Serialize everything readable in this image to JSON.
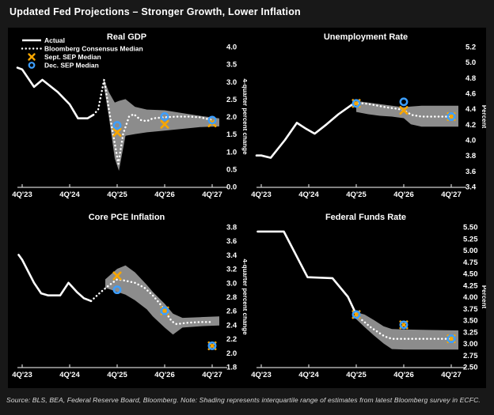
{
  "header": {
    "title": "Updated Fed Projections – Stronger Growth, Lower Inflation"
  },
  "footer": {
    "note": "Source: BLS, BEA, Federal Reserve Board, Bloomberg. Note: Shading represents interquartile range of estimates from latest Bloomberg survey in ECFC."
  },
  "colors": {
    "page_bg": "#181818",
    "panel_bg": "#000000",
    "actual": "#ffffff",
    "consensus": "#ffffff",
    "band": "#8c8c8c",
    "sept_x": "#f7a600",
    "dec_circle": "#3d9fff",
    "axis": "#d0d0d0",
    "text": "#ffffff"
  },
  "legend": {
    "items": [
      {
        "sample": "line",
        "label": "Actual"
      },
      {
        "sample": "dots",
        "label": "Bloomberg Consensus Median"
      },
      {
        "sample": "x",
        "label": "Sept. SEP Median"
      },
      {
        "sample": "circle",
        "label": "Dec. SEP Median"
      }
    ]
  },
  "chart_data": [
    {
      "type": "line",
      "key": "real-gdp",
      "title": "Real GDP",
      "ylabel": "4-quarter percent change",
      "ylim": [
        0.0,
        4.0
      ],
      "ystep": 0.5,
      "ydecimals": 1,
      "xlim": [
        -0.6,
        16.8
      ],
      "xticks": [
        {
          "pos": 0,
          "label": "4Q'23"
        },
        {
          "pos": 4,
          "label": "4Q'24"
        },
        {
          "pos": 8,
          "label": "4Q'25"
        },
        {
          "pos": 12,
          "label": "4Q'26"
        },
        {
          "pos": 16,
          "label": "4Q'27"
        }
      ],
      "legend": true,
      "actual": [
        [
          -0.4,
          3.4
        ],
        [
          0,
          3.35
        ],
        [
          1,
          2.85
        ],
        [
          1.7,
          3.05
        ],
        [
          3,
          2.7
        ],
        [
          4,
          2.35
        ],
        [
          4.7,
          1.95
        ],
        [
          5.5,
          1.95
        ],
        [
          6,
          2.05
        ]
      ],
      "consensus": [
        [
          6,
          2.05
        ],
        [
          6.4,
          2.2
        ],
        [
          6.9,
          3.05
        ],
        [
          7.5,
          1.8
        ],
        [
          8.1,
          0.65
        ],
        [
          8.5,
          1.5
        ],
        [
          9,
          2.0
        ],
        [
          9.4,
          2.07
        ],
        [
          10,
          1.9
        ],
        [
          10.5,
          1.87
        ],
        [
          11,
          1.95
        ],
        [
          12,
          1.98
        ],
        [
          13,
          2.0
        ],
        [
          14,
          2.0
        ],
        [
          15,
          1.98
        ],
        [
          16,
          1.9
        ]
      ],
      "band": [
        [
          6.85,
          2.95,
          3.1
        ],
        [
          7.3,
          2.0,
          2.7
        ],
        [
          7.8,
          0.8,
          2.4
        ],
        [
          8.15,
          0.45,
          2.45
        ],
        [
          8.7,
          1.45,
          2.5
        ],
        [
          9.5,
          1.5,
          2.28
        ],
        [
          10.5,
          1.55,
          2.2
        ],
        [
          12,
          1.6,
          2.18
        ],
        [
          13.5,
          1.65,
          2.1
        ],
        [
          15,
          1.7,
          2.02
        ],
        [
          16.6,
          1.72,
          1.95
        ]
      ],
      "sept": [
        [
          8,
          1.55
        ],
        [
          12,
          1.78
        ],
        [
          16,
          1.82
        ]
      ],
      "dec": [
        [
          8,
          1.75
        ],
        [
          12,
          2.0
        ],
        [
          16,
          1.9
        ]
      ]
    },
    {
      "type": "line",
      "key": "unemployment-rate",
      "title": "Unemployment Rate",
      "ylabel": "Percent",
      "ylim": [
        3.4,
        5.2
      ],
      "ystep": 0.2,
      "ydecimals": 1,
      "xlim": [
        -0.6,
        16.8
      ],
      "xticks": [
        {
          "pos": 0,
          "label": "4Q'23"
        },
        {
          "pos": 4,
          "label": "4Q'24"
        },
        {
          "pos": 8,
          "label": "4Q'25"
        },
        {
          "pos": 12,
          "label": "4Q'26"
        },
        {
          "pos": 16,
          "label": "4Q'27"
        }
      ],
      "legend": false,
      "actual": [
        [
          -0.4,
          3.8
        ],
        [
          0,
          3.8
        ],
        [
          0.8,
          3.77
        ],
        [
          2,
          4.0
        ],
        [
          3,
          4.22
        ],
        [
          3.7,
          4.15
        ],
        [
          4.5,
          4.08
        ],
        [
          5.5,
          4.2
        ],
        [
          6.5,
          4.33
        ],
        [
          7.6,
          4.45
        ]
      ],
      "consensus": [
        [
          7.6,
          4.45
        ],
        [
          8,
          4.47
        ],
        [
          8.7,
          4.47
        ],
        [
          9.5,
          4.45
        ],
        [
          10.5,
          4.42
        ],
        [
          11.5,
          4.4
        ],
        [
          12,
          4.38
        ],
        [
          12.7,
          4.32
        ],
        [
          13.5,
          4.3
        ],
        [
          14.5,
          4.3
        ],
        [
          15.5,
          4.3
        ],
        [
          16,
          4.3
        ]
      ],
      "band": [
        [
          8,
          4.36,
          4.5
        ],
        [
          9,
          4.33,
          4.48
        ],
        [
          10,
          4.31,
          4.46
        ],
        [
          11,
          4.3,
          4.44
        ],
        [
          12,
          4.28,
          4.42
        ],
        [
          12.6,
          4.2,
          4.43
        ],
        [
          13.5,
          4.17,
          4.44
        ],
        [
          16.6,
          4.17,
          4.44
        ]
      ],
      "sept": [
        [
          8,
          4.47
        ],
        [
          12,
          4.38
        ],
        [
          16,
          4.3
        ]
      ],
      "dec": [
        [
          8,
          4.47
        ],
        [
          12,
          4.49
        ],
        [
          16,
          4.3
        ]
      ]
    },
    {
      "type": "line",
      "key": "core-pce-inflation",
      "title": "Core PCE Inflation",
      "ylabel": "4-quarter percent change",
      "ylim": [
        1.8,
        3.8
      ],
      "ystep": 0.2,
      "ydecimals": 1,
      "xlim": [
        -0.6,
        16.8
      ],
      "xticks": [
        {
          "pos": 0,
          "label": "4Q'23"
        },
        {
          "pos": 4,
          "label": "4Q'24"
        },
        {
          "pos": 8,
          "label": "4Q'25"
        },
        {
          "pos": 12,
          "label": "4Q'26"
        },
        {
          "pos": 16,
          "label": "4Q'27"
        }
      ],
      "legend": false,
      "actual": [
        [
          -0.3,
          3.4
        ],
        [
          0,
          3.33
        ],
        [
          1,
          3.0
        ],
        [
          1.6,
          2.85
        ],
        [
          2.2,
          2.82
        ],
        [
          3.2,
          2.82
        ],
        [
          3.9,
          3.0
        ],
        [
          4.6,
          2.87
        ],
        [
          5.2,
          2.78
        ],
        [
          5.8,
          2.74
        ]
      ],
      "consensus": [
        [
          5.8,
          2.74
        ],
        [
          6.5,
          2.85
        ],
        [
          7.2,
          2.95
        ],
        [
          8,
          3.05
        ],
        [
          8.7,
          3.03
        ],
        [
          9.5,
          3.0
        ],
        [
          10.3,
          2.93
        ],
        [
          11,
          2.82
        ],
        [
          11.6,
          2.7
        ],
        [
          12,
          2.6
        ],
        [
          12.6,
          2.45
        ],
        [
          13,
          2.41
        ],
        [
          14,
          2.43
        ],
        [
          15,
          2.44
        ],
        [
          16,
          2.44
        ]
      ],
      "band": [
        [
          7,
          2.93,
          3.05
        ],
        [
          8,
          2.87,
          3.2
        ],
        [
          8.7,
          2.83,
          3.25
        ],
        [
          9.5,
          2.75,
          3.15
        ],
        [
          10.5,
          2.62,
          2.97
        ],
        [
          11,
          2.52,
          2.87
        ],
        [
          12,
          2.36,
          2.7
        ],
        [
          12.7,
          2.26,
          2.56
        ],
        [
          13.5,
          2.36,
          2.5
        ],
        [
          15,
          2.38,
          2.51
        ],
        [
          16.6,
          2.39,
          2.52
        ]
      ],
      "sept": [
        [
          8,
          3.1
        ],
        [
          12,
          2.6
        ],
        [
          16,
          2.1
        ]
      ],
      "dec": [
        [
          8,
          2.9
        ],
        [
          12,
          2.6
        ],
        [
          16,
          2.1
        ]
      ]
    },
    {
      "type": "line",
      "key": "federal-funds-rate",
      "title": "Federal Funds Rate",
      "ylabel": "Percent",
      "ylim": [
        2.5,
        5.5
      ],
      "ystep": 0.25,
      "ydecimals": 2,
      "xlim": [
        -0.6,
        16.8
      ],
      "xticks": [
        {
          "pos": 0,
          "label": "4Q'23"
        },
        {
          "pos": 4,
          "label": "4Q'24"
        },
        {
          "pos": 8,
          "label": "4Q'25"
        },
        {
          "pos": 12,
          "label": "4Q'26"
        },
        {
          "pos": 16,
          "label": "4Q'27"
        }
      ],
      "legend": false,
      "actual": [
        [
          -0.3,
          5.4
        ],
        [
          1.9,
          5.4
        ],
        [
          3.9,
          4.42
        ],
        [
          6,
          4.4
        ],
        [
          7.3,
          4.0
        ],
        [
          8,
          3.62
        ]
      ],
      "consensus": [
        [
          8,
          3.6
        ],
        [
          8.6,
          3.48
        ],
        [
          9.2,
          3.35
        ],
        [
          9.8,
          3.25
        ],
        [
          10.4,
          3.15
        ],
        [
          11,
          3.1
        ],
        [
          12,
          3.1
        ],
        [
          13,
          3.1
        ],
        [
          14,
          3.1
        ],
        [
          15,
          3.1
        ],
        [
          16,
          3.1
        ]
      ],
      "band": [
        [
          8,
          3.52,
          3.67
        ],
        [
          8.7,
          3.35,
          3.62
        ],
        [
          9.5,
          3.17,
          3.5
        ],
        [
          10.3,
          3.0,
          3.37
        ],
        [
          11,
          2.88,
          3.31
        ],
        [
          12,
          2.87,
          3.3
        ],
        [
          14,
          2.87,
          3.29
        ],
        [
          16.6,
          2.87,
          3.28
        ]
      ],
      "sept": [
        [
          8,
          3.62
        ],
        [
          12,
          3.4
        ],
        [
          16,
          3.1
        ]
      ],
      "dec": [
        [
          8,
          3.62
        ],
        [
          12,
          3.4
        ],
        [
          16,
          3.1
        ]
      ]
    }
  ]
}
